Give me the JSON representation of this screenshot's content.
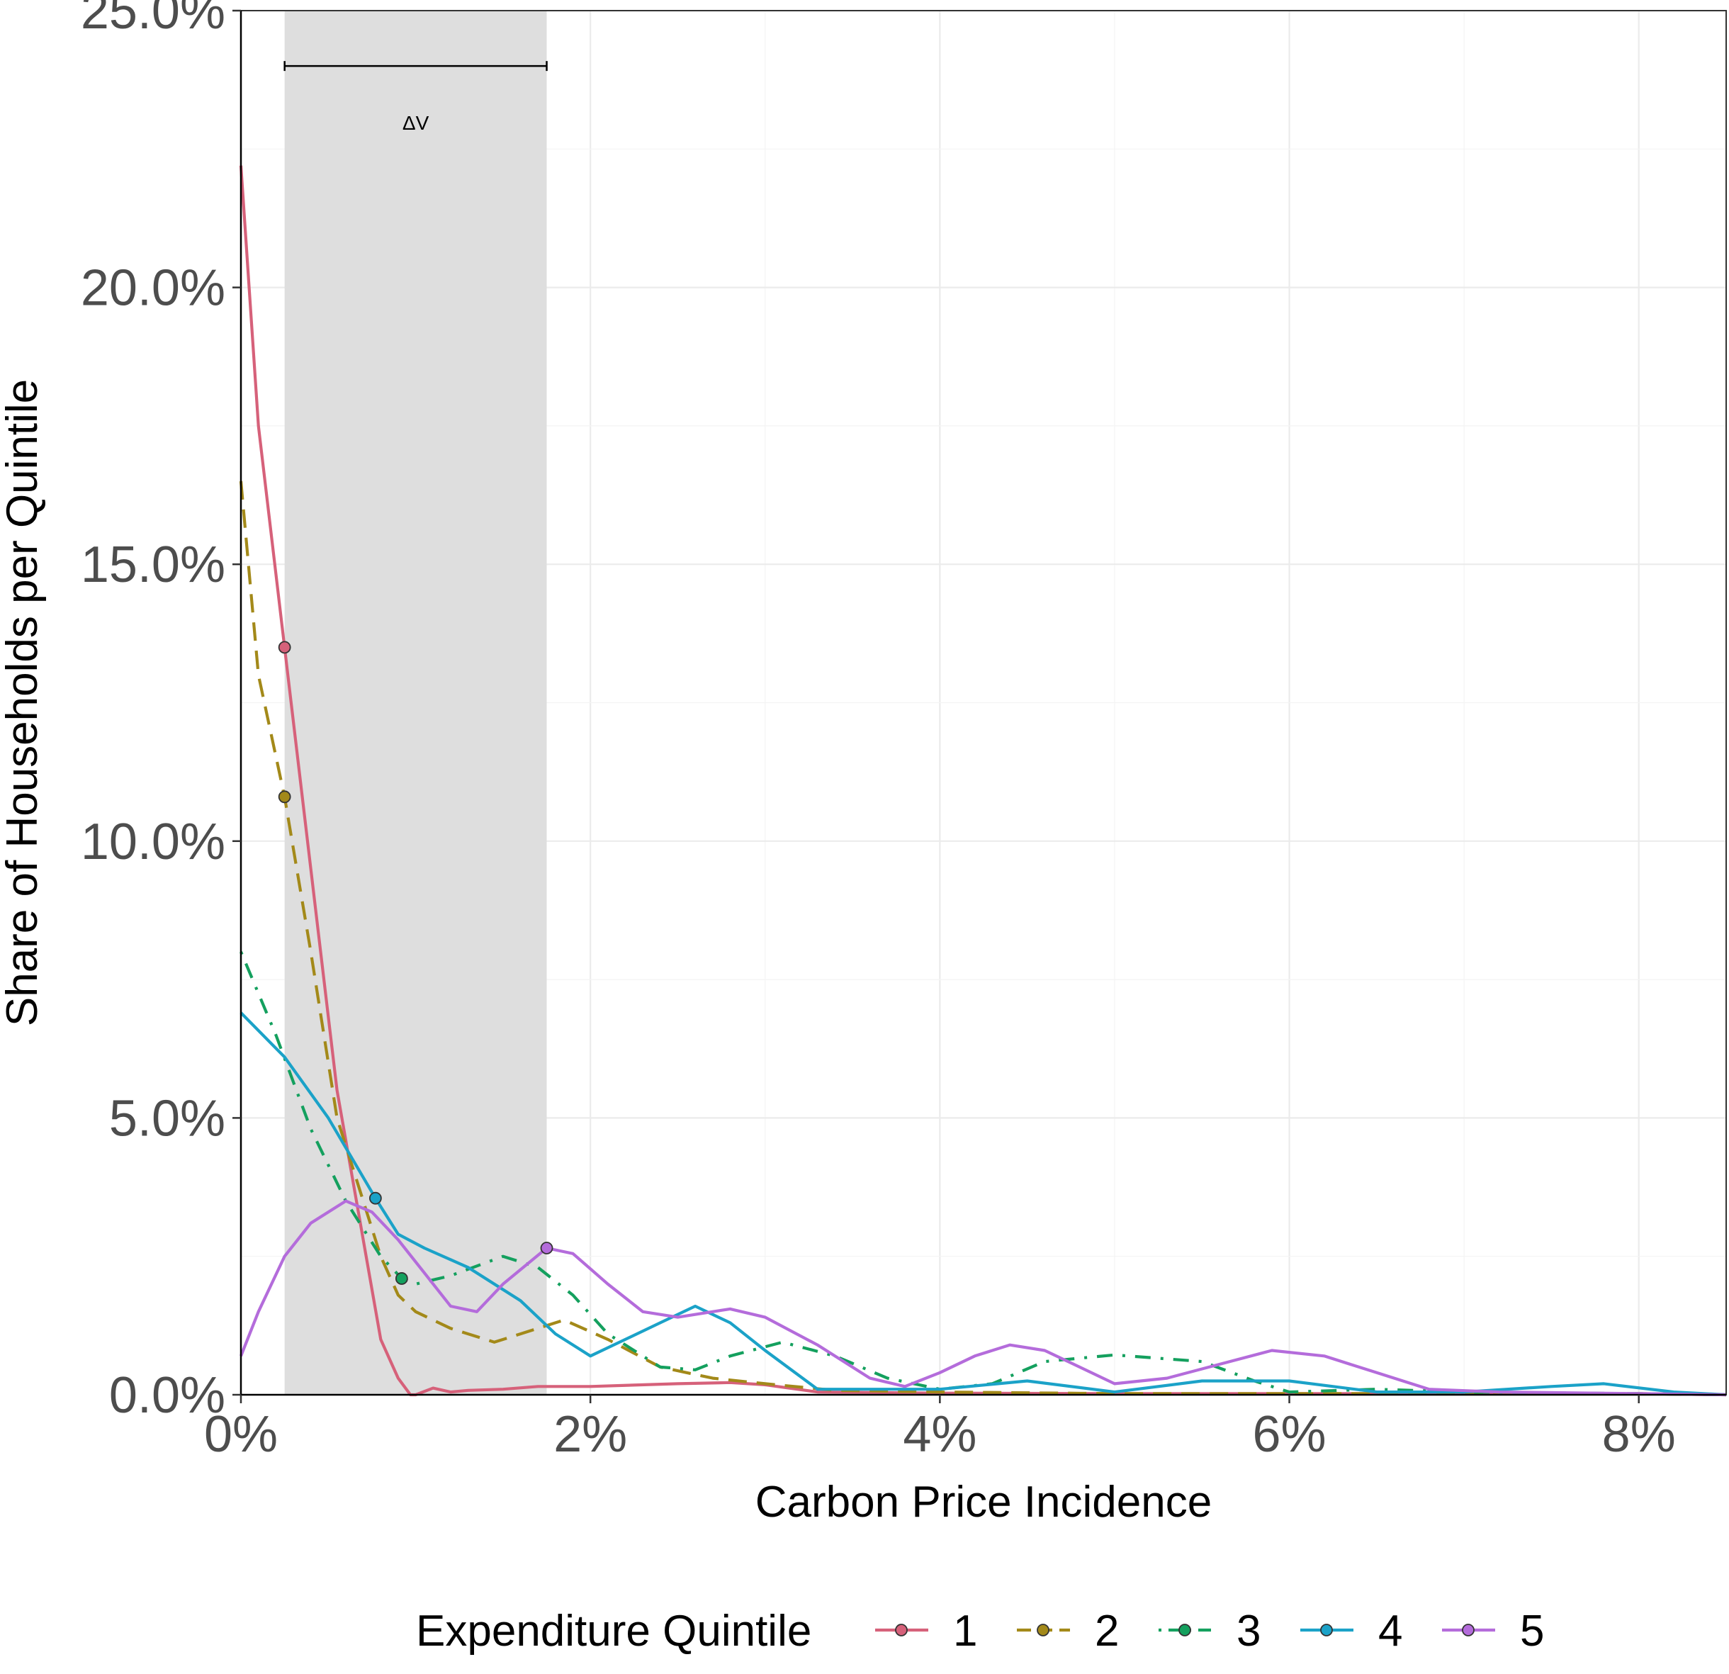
{
  "chart_data": {
    "type": "line",
    "title": "",
    "xlabel": "Carbon Price Incidence",
    "ylabel": "Share of Households per Quintile",
    "xlim": [
      0,
      8.5
    ],
    "ylim": [
      0,
      25
    ],
    "x_ticks": [
      0,
      2,
      4,
      6,
      8
    ],
    "x_tick_labels": [
      "0%",
      "2%",
      "4%",
      "6%",
      "8%"
    ],
    "y_ticks": [
      0,
      5,
      10,
      15,
      20,
      25
    ],
    "y_tick_labels": [
      "0.0%",
      "5.0%",
      "10.0%",
      "15.0%",
      "20.0%",
      "25.0%"
    ],
    "grid": true,
    "legend": {
      "title": "Expenditure Quintile",
      "position": "bottom"
    },
    "shaded_band": {
      "x0": 0.25,
      "x1": 1.75,
      "color": "#dedede"
    },
    "annotation": {
      "label": "ΔV",
      "x0": 0.25,
      "x1": 1.75,
      "y": 24
    },
    "series": [
      {
        "name": "1",
        "color": "#d6617a",
        "dash": "solid",
        "marker": {
          "x": 0.25,
          "y": 13.5
        },
        "x": [
          0,
          0.1,
          0.25,
          0.4,
          0.55,
          0.7,
          0.8,
          0.9,
          0.97,
          1.0,
          1.1,
          1.2,
          1.3,
          1.5,
          1.7,
          2.0,
          2.5,
          2.8,
          3.0,
          3.3,
          4.0,
          5.0,
          6.0,
          7.0,
          8.0,
          8.5
        ],
        "values": [
          22.2,
          17.5,
          13.5,
          9.5,
          5.5,
          2.8,
          1.0,
          0.3,
          0.0,
          0.0,
          0.12,
          0.05,
          0.08,
          0.1,
          0.15,
          0.15,
          0.2,
          0.22,
          0.18,
          0.05,
          0.03,
          0.02,
          0.02,
          0.02,
          0.02,
          0.0
        ]
      },
      {
        "name": "2",
        "color": "#a38919",
        "dash": "dashed",
        "marker": {
          "x": 0.25,
          "y": 10.8
        },
        "x": [
          0,
          0.1,
          0.25,
          0.4,
          0.55,
          0.7,
          0.8,
          0.9,
          1.0,
          1.2,
          1.45,
          1.6,
          1.85,
          2.1,
          2.4,
          2.7,
          3.0,
          3.4,
          4.0,
          5.0,
          6.0,
          7.0,
          8.0,
          8.5
        ],
        "values": [
          16.5,
          13.0,
          10.8,
          8.0,
          5.0,
          3.5,
          2.5,
          1.8,
          1.5,
          1.2,
          0.95,
          1.1,
          1.35,
          1.0,
          0.5,
          0.3,
          0.2,
          0.08,
          0.05,
          0.02,
          0.02,
          0.02,
          0.02,
          0.0
        ]
      },
      {
        "name": "3",
        "color": "#14a05e",
        "dash": "dashdot",
        "marker": {
          "x": 0.92,
          "y": 2.1
        },
        "x": [
          0,
          0.2,
          0.4,
          0.6,
          0.8,
          0.92,
          1.0,
          1.2,
          1.5,
          1.7,
          1.9,
          2.1,
          2.4,
          2.6,
          2.8,
          3.1,
          3.4,
          3.7,
          4.0,
          4.3,
          4.6,
          5.0,
          5.5,
          5.8,
          6.0,
          6.5,
          7.0,
          8.0,
          8.5
        ],
        "values": [
          8.0,
          6.5,
          4.8,
          3.5,
          2.5,
          2.1,
          2.0,
          2.15,
          2.5,
          2.3,
          1.8,
          1.1,
          0.5,
          0.45,
          0.7,
          0.95,
          0.7,
          0.3,
          0.1,
          0.2,
          0.6,
          0.72,
          0.6,
          0.25,
          0.05,
          0.1,
          0.05,
          0.02,
          0.0
        ]
      },
      {
        "name": "4",
        "color": "#1ba2c8",
        "dash": "solid",
        "marker": {
          "x": 0.77,
          "y": 3.55
        },
        "x": [
          0,
          0.25,
          0.5,
          0.77,
          0.9,
          1.05,
          1.3,
          1.6,
          1.8,
          2.0,
          2.2,
          2.4,
          2.6,
          2.8,
          3.0,
          3.3,
          3.6,
          4.0,
          4.5,
          5.0,
          5.5,
          6.0,
          6.5,
          7.0,
          7.5,
          7.8,
          8.2,
          8.5
        ],
        "values": [
          6.9,
          6.1,
          5.0,
          3.55,
          2.9,
          2.65,
          2.3,
          1.7,
          1.1,
          0.7,
          1.0,
          1.3,
          1.6,
          1.3,
          0.8,
          0.1,
          0.1,
          0.1,
          0.25,
          0.05,
          0.25,
          0.25,
          0.05,
          0.05,
          0.15,
          0.2,
          0.05,
          0.0
        ]
      },
      {
        "name": "5",
        "color": "#b46cdb",
        "dash": "solid",
        "marker": {
          "x": 1.75,
          "y": 2.65
        },
        "x": [
          0,
          0.1,
          0.25,
          0.4,
          0.6,
          0.75,
          0.9,
          1.05,
          1.2,
          1.35,
          1.5,
          1.75,
          1.9,
          2.1,
          2.3,
          2.5,
          2.8,
          3.0,
          3.3,
          3.6,
          3.8,
          4.0,
          4.2,
          4.4,
          4.6,
          4.8,
          5.0,
          5.3,
          5.6,
          5.9,
          6.2,
          6.5,
          6.8,
          7.2,
          8.0,
          8.5
        ],
        "values": [
          0.7,
          1.5,
          2.5,
          3.1,
          3.5,
          3.3,
          2.8,
          2.2,
          1.6,
          1.5,
          2.0,
          2.65,
          2.55,
          2.0,
          1.5,
          1.4,
          1.55,
          1.4,
          0.9,
          0.3,
          0.15,
          0.4,
          0.7,
          0.9,
          0.8,
          0.5,
          0.2,
          0.3,
          0.55,
          0.8,
          0.7,
          0.4,
          0.1,
          0.05,
          0.02,
          0.0
        ]
      }
    ]
  }
}
